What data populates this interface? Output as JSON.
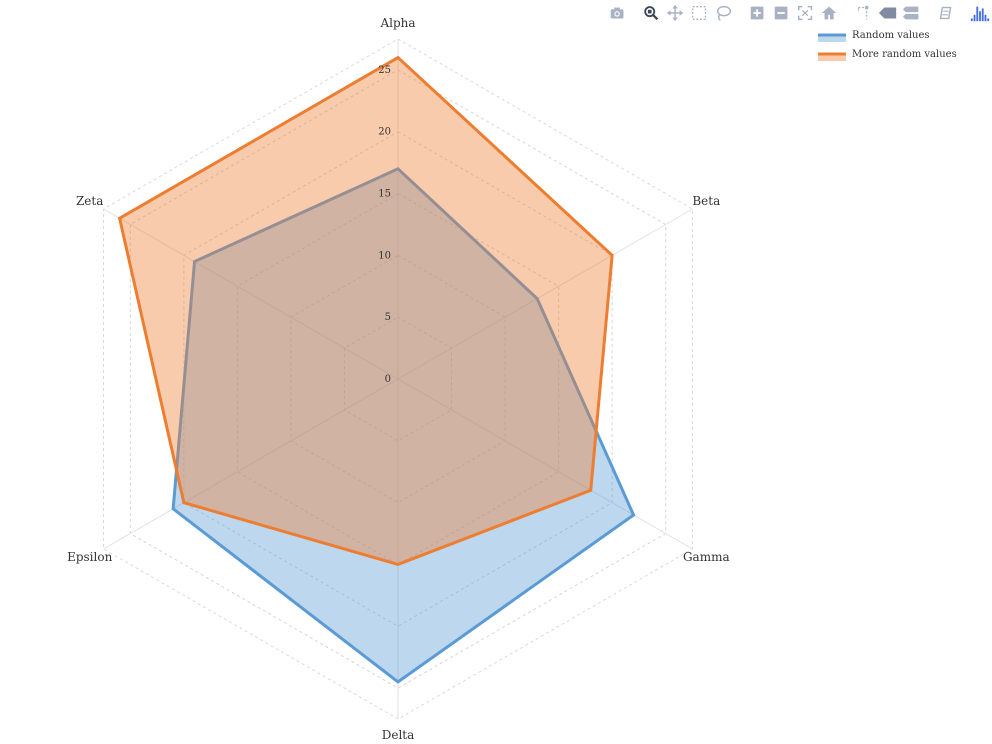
{
  "chart_data": {
    "type": "radar",
    "axes": [
      "Alpha",
      "Beta",
      "Gamma",
      "Delta",
      "Epsilon",
      "Zeta"
    ],
    "radial_range": [
      0,
      27.5
    ],
    "radial_ticks": [
      "0",
      "5",
      "10",
      "15",
      "20",
      "25"
    ],
    "series": [
      {
        "name": "Random values",
        "values": [
          17,
          13,
          22,
          24.5,
          21,
          19
        ],
        "color": "#5b9bd5"
      },
      {
        "name": "More random values",
        "values": [
          26,
          20,
          18,
          15,
          20,
          26
        ],
        "color": "#ed7d31"
      }
    ],
    "legend_position": "top-right",
    "grid": true
  },
  "modebar": {
    "buttons": [
      "camera-icon",
      "zoom-icon",
      "pan-icon",
      "box-select-icon",
      "lasso-select-icon",
      "zoom-in-icon",
      "zoom-out-icon",
      "autoscale-icon",
      "reset-axes-icon",
      "spike-lines-icon",
      "hover-closest-icon",
      "hover-compare-icon",
      "editor-icon",
      "plotly-logo-icon"
    ]
  }
}
